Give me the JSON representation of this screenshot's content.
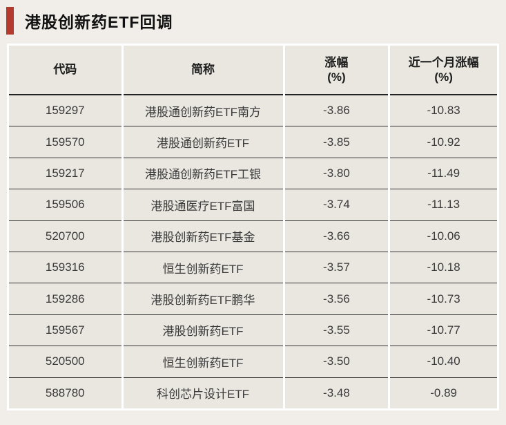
{
  "colors": {
    "accent": "#b43a2e",
    "page_background": "#f1eee9",
    "cell_background": "#eae7e1",
    "divider": "#2e2e2e"
  },
  "chart_data": {
    "type": "table",
    "title": "港股创新药ETF回调",
    "columns": [
      {
        "label": "代码",
        "sublabel": ""
      },
      {
        "label": "简称",
        "sublabel": ""
      },
      {
        "label": "涨幅",
        "sublabel": "(%)"
      },
      {
        "label": "近一个月涨幅",
        "sublabel": "(%)"
      }
    ],
    "rows": [
      {
        "code": "159297",
        "name": "港股通创新药ETF南方",
        "change": "-3.86",
        "monthly": "-10.83"
      },
      {
        "code": "159570",
        "name": "港股通创新药ETF",
        "change": "-3.85",
        "monthly": "-10.92"
      },
      {
        "code": "159217",
        "name": "港股通创新药ETF工银",
        "change": "-3.80",
        "monthly": "-11.49"
      },
      {
        "code": "159506",
        "name": "港股通医疗ETF富国",
        "change": "-3.74",
        "monthly": "-11.13"
      },
      {
        "code": "520700",
        "name": "港股创新药ETF基金",
        "change": "-3.66",
        "monthly": "-10.06"
      },
      {
        "code": "159316",
        "name": "恒生创新药ETF",
        "change": "-3.57",
        "monthly": "-10.18"
      },
      {
        "code": "159286",
        "name": "港股创新药ETF鹏华",
        "change": "-3.56",
        "monthly": "-10.73"
      },
      {
        "code": "159567",
        "name": "港股创新药ETF",
        "change": "-3.55",
        "monthly": "-10.77"
      },
      {
        "code": "520500",
        "name": "恒生创新药ETF",
        "change": "-3.50",
        "monthly": "-10.40"
      },
      {
        "code": "588780",
        "name": "科创芯片设计ETF",
        "change": "-3.48",
        "monthly": "-0.89"
      }
    ]
  }
}
